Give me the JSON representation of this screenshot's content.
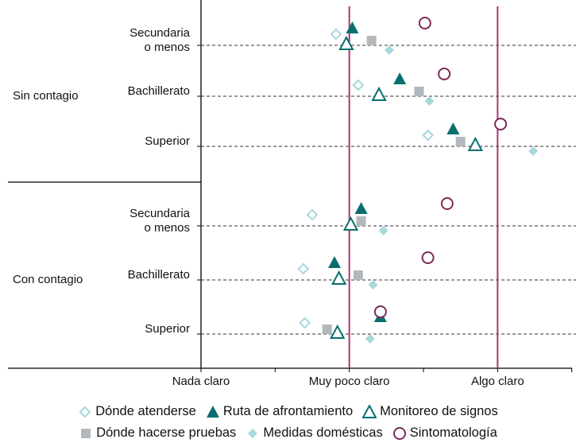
{
  "chart_data": {
    "type": "dot",
    "groups": [
      "Sin contagio",
      "Con contagio"
    ],
    "categories": [
      "Secundaria\no menos",
      "Bachillerato",
      "Superior",
      "Secundaria\no menos",
      "Bachillerato",
      "Superior"
    ],
    "xlim": [
      1,
      3.55
    ],
    "xticks": [
      {
        "value": 1,
        "label": "Nada claro"
      },
      {
        "value": 2,
        "label": "Muy poco claro"
      },
      {
        "value": 3,
        "label": "Algo claro"
      }
    ],
    "xminorticks": [
      1.5,
      2.5,
      3.5
    ],
    "vlines": [
      2,
      3
    ],
    "vline_color": "#b0336e",
    "series": [
      {
        "name": "Dónde atenderse",
        "color": "#a8d8dc",
        "marker": "diamond-open",
        "values": [
          1.91,
          2.06,
          2.53,
          1.75,
          1.69,
          1.7
        ]
      },
      {
        "name": "Ruta de afrontamiento",
        "color": "#0b6e6e",
        "marker": "triangle",
        "values": [
          2.02,
          2.34,
          2.7,
          2.08,
          1.9,
          2.21
        ]
      },
      {
        "name": "Monitoreo de signos",
        "color": "#0b6e6e",
        "marker": "triangle-open",
        "values": [
          1.98,
          2.2,
          2.85,
          2.01,
          1.93,
          1.92
        ]
      },
      {
        "name": "Dónde hacerse pruebas",
        "color": "#b3b8bd",
        "marker": "square",
        "values": [
          2.15,
          2.47,
          2.75,
          2.08,
          2.06,
          1.85
        ]
      },
      {
        "name": "Medidas domésticas",
        "color": "#a8d8dc",
        "marker": "diamond",
        "values": [
          2.27,
          2.54,
          3.24,
          2.23,
          2.16,
          2.14
        ]
      },
      {
        "name": "Sintomatología",
        "color": "#7a2a5a",
        "marker": "circle-open",
        "values": [
          2.51,
          2.64,
          3.02,
          2.66,
          2.53,
          2.21
        ]
      }
    ]
  }
}
